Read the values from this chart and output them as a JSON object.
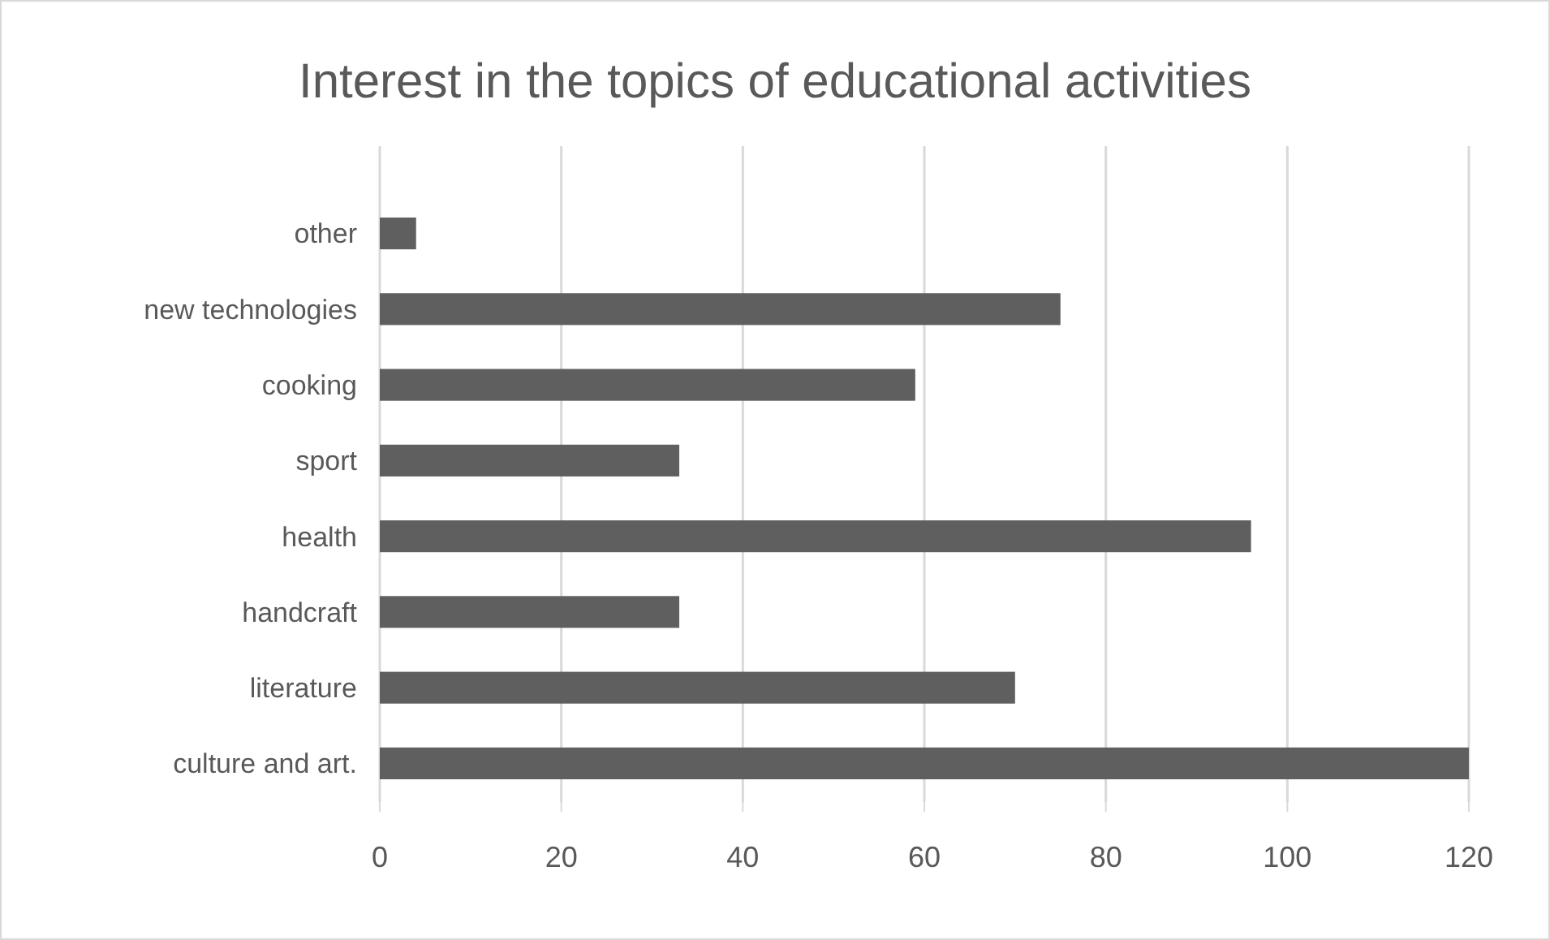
{
  "chart_data": {
    "type": "bar",
    "orientation": "horizontal",
    "title": "Interest in the topics of educational activities",
    "categories": [
      "other",
      "new technologies",
      "cooking",
      "sport",
      "health",
      "handcraft",
      "literature",
      "culture and art."
    ],
    "values": [
      4,
      75,
      59,
      33,
      96,
      33,
      70,
      120
    ],
    "color": "#5f5f5f",
    "xlim": [
      0,
      120
    ],
    "xticks": [
      0,
      20,
      40,
      60,
      80,
      100,
      120
    ],
    "grid": "x"
  }
}
